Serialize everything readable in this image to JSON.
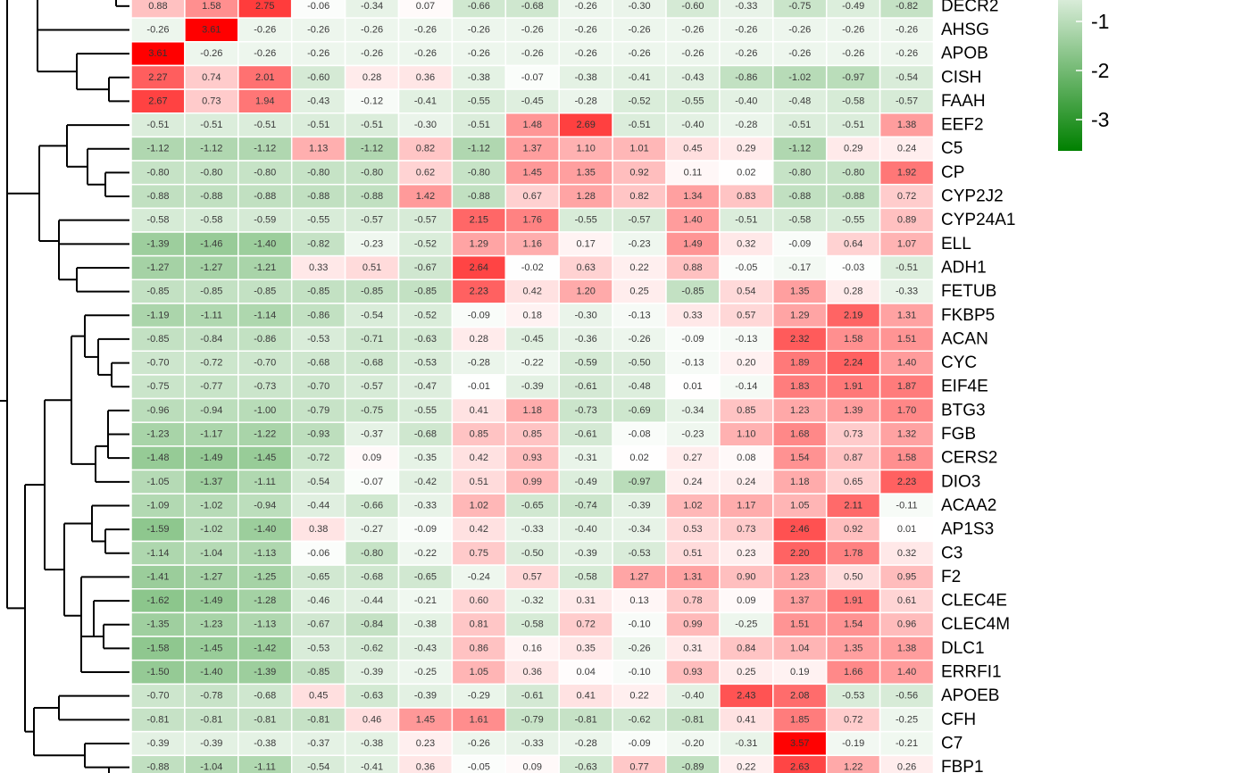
{
  "chart_data": {
    "type": "heatmap",
    "title": "",
    "xlabel": "",
    "ylabel": "",
    "columns": 16,
    "rows": [
      {
        "gene": "DECR2",
        "values": [
          0.88,
          1.58,
          2.75,
          -0.06,
          -0.34,
          0.07,
          -0.66,
          -0.68,
          -0.26,
          -0.3,
          -0.6,
          -0.33,
          -0.75,
          -0.49,
          -0.82
        ]
      },
      {
        "gene": "AHSG",
        "values": [
          -0.26,
          3.61,
          -0.26,
          -0.26,
          -0.26,
          -0.26,
          -0.26,
          -0.26,
          -0.26,
          -0.26,
          -0.26,
          -0.26,
          -0.26,
          -0.26,
          -0.26
        ]
      },
      {
        "gene": "APOB",
        "values": [
          3.61,
          -0.26,
          -0.26,
          -0.26,
          -0.26,
          -0.26,
          -0.26,
          -0.26,
          -0.26,
          -0.26,
          -0.26,
          -0.26,
          -0.26,
          -0.26,
          -0.26
        ]
      },
      {
        "gene": "CISH",
        "values": [
          2.27,
          0.74,
          2.01,
          -0.6,
          0.28,
          0.36,
          -0.38,
          -0.07,
          -0.38,
          -0.41,
          -0.43,
          -0.86,
          -1.02,
          -0.97,
          -0.54
        ]
      },
      {
        "gene": "FAAH",
        "values": [
          2.67,
          0.73,
          1.94,
          -0.43,
          -0.12,
          -0.41,
          -0.55,
          -0.45,
          -0.28,
          -0.52,
          -0.55,
          -0.4,
          -0.48,
          -0.58,
          -0.57
        ]
      },
      {
        "gene": "EEF2",
        "values": [
          -0.51,
          -0.51,
          -0.51,
          -0.51,
          -0.51,
          -0.3,
          -0.51,
          1.48,
          2.69,
          -0.51,
          -0.4,
          -0.28,
          -0.51,
          -0.51,
          1.38
        ]
      },
      {
        "gene": "C5",
        "values": [
          -1.12,
          -1.12,
          -1.12,
          1.13,
          -1.12,
          0.82,
          -1.12,
          1.37,
          1.1,
          1.01,
          0.45,
          0.29,
          -1.12,
          0.29,
          0.24
        ]
      },
      {
        "gene": "CP",
        "values": [
          -0.8,
          -0.8,
          -0.8,
          -0.8,
          -0.8,
          0.62,
          -0.8,
          1.45,
          1.35,
          0.92,
          0.11,
          0.02,
          -0.8,
          -0.8,
          1.92
        ]
      },
      {
        "gene": "CYP2J2",
        "values": [
          -0.88,
          -0.88,
          -0.88,
          -0.88,
          -0.88,
          1.42,
          -0.88,
          0.67,
          1.28,
          0.82,
          1.34,
          0.83,
          -0.88,
          -0.88,
          0.72
        ]
      },
      {
        "gene": "CYP24A1",
        "values": [
          -0.58,
          -0.58,
          -0.59,
          -0.55,
          -0.57,
          -0.57,
          2.15,
          1.76,
          -0.55,
          -0.57,
          1.4,
          -0.51,
          -0.58,
          -0.55,
          0.89
        ]
      },
      {
        "gene": "ELL",
        "values": [
          -1.39,
          -1.46,
          -1.4,
          -0.82,
          -0.23,
          -0.52,
          1.29,
          1.16,
          0.17,
          -0.23,
          1.49,
          0.32,
          -0.09,
          0.64,
          1.07
        ]
      },
      {
        "gene": "ADH1",
        "values": [
          -1.27,
          -1.27,
          -1.21,
          0.33,
          0.51,
          -0.67,
          2.64,
          -0.02,
          0.63,
          0.22,
          0.88,
          -0.05,
          -0.17,
          -0.03,
          -0.51
        ]
      },
      {
        "gene": "FETUB",
        "values": [
          -0.85,
          -0.85,
          -0.85,
          -0.85,
          -0.85,
          -0.85,
          2.23,
          0.42,
          1.2,
          0.25,
          -0.85,
          0.54,
          1.35,
          0.28,
          -0.33
        ]
      },
      {
        "gene": "FKBP5",
        "values": [
          -1.19,
          -1.11,
          -1.14,
          -0.86,
          -0.54,
          -0.52,
          -0.09,
          0.18,
          -0.3,
          -0.13,
          0.33,
          0.57,
          1.29,
          2.19,
          1.31
        ]
      },
      {
        "gene": "ACAN",
        "values": [
          -0.85,
          -0.84,
          -0.86,
          -0.53,
          -0.71,
          -0.63,
          0.28,
          -0.45,
          -0.36,
          -0.26,
          -0.09,
          -0.13,
          2.32,
          1.58,
          1.51
        ]
      },
      {
        "gene": "CYC",
        "values": [
          -0.7,
          -0.72,
          -0.7,
          -0.68,
          -0.68,
          -0.53,
          -0.28,
          -0.22,
          -0.59,
          -0.5,
          -0.13,
          0.2,
          1.89,
          2.24,
          1.4
        ]
      },
      {
        "gene": "EIF4E",
        "values": [
          -0.75,
          -0.77,
          -0.73,
          -0.7,
          -0.57,
          -0.47,
          -0.01,
          -0.39,
          -0.61,
          -0.48,
          0.01,
          -0.14,
          1.83,
          1.91,
          1.87
        ]
      },
      {
        "gene": "BTG3",
        "values": [
          -0.96,
          -0.94,
          -1.0,
          -0.79,
          -0.75,
          -0.55,
          0.41,
          1.18,
          -0.73,
          -0.69,
          -0.34,
          0.85,
          1.23,
          1.39,
          1.7
        ]
      },
      {
        "gene": "FGB",
        "values": [
          -1.23,
          -1.17,
          -1.22,
          -0.93,
          -0.37,
          -0.68,
          0.85,
          0.85,
          -0.61,
          -0.08,
          -0.23,
          1.1,
          1.68,
          0.73,
          1.32
        ]
      },
      {
        "gene": "CERS2",
        "values": [
          -1.48,
          -1.49,
          -1.45,
          -0.72,
          0.09,
          -0.35,
          0.42,
          0.93,
          -0.31,
          0.02,
          0.27,
          0.08,
          1.54,
          0.87,
          1.58
        ]
      },
      {
        "gene": "DIO3",
        "values": [
          -1.05,
          -1.37,
          -1.11,
          -0.54,
          -0.07,
          -0.42,
          0.51,
          0.99,
          -0.49,
          -0.97,
          0.24,
          0.24,
          1.18,
          0.65,
          2.23
        ]
      },
      {
        "gene": "ACAA2",
        "values": [
          -1.09,
          -1.02,
          -0.94,
          -0.44,
          -0.66,
          -0.33,
          1.02,
          -0.65,
          -0.74,
          -0.39,
          1.02,
          1.17,
          1.05,
          2.11,
          -0.11
        ]
      },
      {
        "gene": "AP1S3",
        "values": [
          -1.59,
          -1.02,
          -1.4,
          0.38,
          -0.27,
          -0.09,
          0.42,
          -0.33,
          -0.4,
          -0.34,
          0.53,
          0.73,
          2.46,
          0.92,
          0.01
        ]
      },
      {
        "gene": "C3",
        "values": [
          -1.14,
          -1.04,
          -1.13,
          -0.06,
          -0.8,
          -0.22,
          0.75,
          -0.5,
          -0.39,
          -0.53,
          0.51,
          0.23,
          2.2,
          1.78,
          0.32
        ]
      },
      {
        "gene": "F2",
        "values": [
          -1.41,
          -1.27,
          -1.25,
          -0.65,
          -0.68,
          -0.65,
          -0.24,
          0.57,
          -0.58,
          1.27,
          1.31,
          0.9,
          1.23,
          0.5,
          0.95
        ]
      },
      {
        "gene": "CLEC4E",
        "values": [
          -1.62,
          -1.49,
          -1.28,
          -0.46,
          -0.44,
          -0.21,
          0.6,
          -0.32,
          0.31,
          0.13,
          0.78,
          0.09,
          1.37,
          1.91,
          0.61
        ]
      },
      {
        "gene": "CLEC4M",
        "values": [
          -1.35,
          -1.23,
          -1.13,
          -0.67,
          -0.84,
          -0.38,
          0.81,
          -0.58,
          0.72,
          -0.1,
          0.99,
          -0.25,
          1.51,
          1.54,
          0.96
        ]
      },
      {
        "gene": "DLC1",
        "values": [
          -1.58,
          -1.45,
          -1.42,
          -0.53,
          -0.62,
          -0.43,
          0.86,
          0.16,
          0.35,
          -0.26,
          0.31,
          0.84,
          1.04,
          1.35,
          1.38
        ]
      },
      {
        "gene": "ERRFI1",
        "values": [
          -1.5,
          -1.4,
          -1.39,
          -0.85,
          -0.39,
          -0.25,
          1.05,
          0.36,
          0.04,
          -0.1,
          0.93,
          0.25,
          0.19,
          1.66,
          1.4
        ]
      },
      {
        "gene": "APOEB",
        "values": [
          -0.7,
          -0.78,
          -0.68,
          0.45,
          -0.63,
          -0.39,
          -0.29,
          -0.61,
          0.41,
          0.22,
          -0.4,
          2.43,
          2.08,
          -0.53,
          -0.56
        ]
      },
      {
        "gene": "CFH",
        "values": [
          -0.81,
          -0.81,
          -0.81,
          -0.81,
          0.46,
          1.45,
          1.61,
          -0.79,
          -0.81,
          -0.62,
          -0.81,
          0.41,
          1.85,
          0.72,
          -0.25
        ]
      },
      {
        "gene": "C7",
        "values": [
          -0.39,
          -0.39,
          -0.38,
          -0.37,
          -0.38,
          0.23,
          -0.26,
          -0.33,
          -0.28,
          -0.09,
          -0.2,
          -0.31,
          3.57,
          -0.19,
          -0.21
        ]
      },
      {
        "gene": "FBP1",
        "values": [
          -0.88,
          -1.04,
          -1.11,
          -0.54,
          -0.41,
          0.36,
          -0.05,
          0.09,
          -0.63,
          0.77,
          -0.89,
          0.22,
          2.63,
          1.22,
          0.26
        ]
      }
    ],
    "color_scale": {
      "low": "#008000",
      "mid": "#ffffff",
      "high": "#ff0000",
      "min": -3.6,
      "max": 3.6
    },
    "legend": {
      "position": "right",
      "tick_labels": [
        "-1",
        "-2",
        "-3"
      ]
    }
  }
}
